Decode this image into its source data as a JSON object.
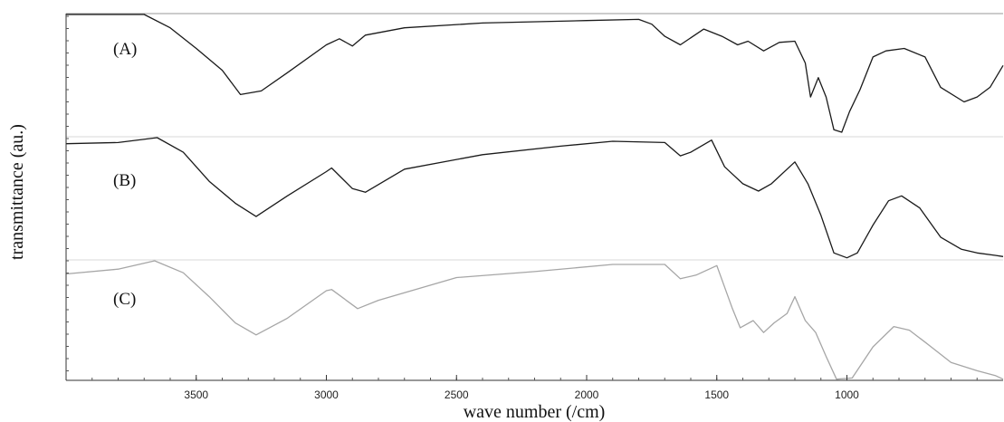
{
  "chart_data": {
    "type": "line",
    "xlabel": "wave number (/cm)",
    "ylabel": "transmittance (au.)",
    "xlim": [
      4000,
      400
    ],
    "x_ticks": [
      3500,
      3000,
      2500,
      2000,
      1500,
      1000
    ],
    "x_tick_labels": [
      "3500",
      "3000",
      "2500",
      "2000",
      "1500",
      "1000"
    ],
    "y_unit": "normalized transmittance (0 = panel bottom, 1 = panel top)",
    "grid": false,
    "legend": "none",
    "series": [
      {
        "name": "(A)",
        "color": "#1a1a1a",
        "points": [
          [
            4000,
            1.0
          ],
          [
            3700,
            1.0
          ],
          [
            3600,
            0.89
          ],
          [
            3500,
            0.72
          ],
          [
            3400,
            0.54
          ],
          [
            3330,
            0.34
          ],
          [
            3250,
            0.37
          ],
          [
            3150,
            0.52
          ],
          [
            3000,
            0.75
          ],
          [
            2950,
            0.8
          ],
          [
            2900,
            0.74
          ],
          [
            2850,
            0.83
          ],
          [
            2700,
            0.89
          ],
          [
            2400,
            0.93
          ],
          [
            2000,
            0.95
          ],
          [
            1800,
            0.96
          ],
          [
            1750,
            0.92
          ],
          [
            1700,
            0.82
          ],
          [
            1640,
            0.75
          ],
          [
            1550,
            0.88
          ],
          [
            1480,
            0.82
          ],
          [
            1420,
            0.75
          ],
          [
            1380,
            0.78
          ],
          [
            1320,
            0.7
          ],
          [
            1260,
            0.77
          ],
          [
            1200,
            0.78
          ],
          [
            1160,
            0.6
          ],
          [
            1140,
            0.32
          ],
          [
            1110,
            0.48
          ],
          [
            1080,
            0.32
          ],
          [
            1050,
            0.05
          ],
          [
            1020,
            0.03
          ],
          [
            990,
            0.2
          ],
          [
            950,
            0.38
          ],
          [
            900,
            0.65
          ],
          [
            850,
            0.7
          ],
          [
            780,
            0.72
          ],
          [
            700,
            0.65
          ],
          [
            640,
            0.4
          ],
          [
            550,
            0.28
          ],
          [
            500,
            0.32
          ],
          [
            450,
            0.4
          ],
          [
            400,
            0.58
          ]
        ]
      },
      {
        "name": "(B)",
        "color": "#1a1a1a",
        "points": [
          [
            4000,
            0.95
          ],
          [
            3800,
            0.96
          ],
          [
            3650,
            1.0
          ],
          [
            3550,
            0.88
          ],
          [
            3450,
            0.64
          ],
          [
            3350,
            0.46
          ],
          [
            3270,
            0.35
          ],
          [
            3150,
            0.52
          ],
          [
            3000,
            0.72
          ],
          [
            2980,
            0.75
          ],
          [
            2900,
            0.58
          ],
          [
            2850,
            0.55
          ],
          [
            2700,
            0.74
          ],
          [
            2400,
            0.86
          ],
          [
            2100,
            0.93
          ],
          [
            1900,
            0.97
          ],
          [
            1700,
            0.96
          ],
          [
            1640,
            0.85
          ],
          [
            1600,
            0.88
          ],
          [
            1520,
            0.98
          ],
          [
            1470,
            0.76
          ],
          [
            1440,
            0.7
          ],
          [
            1400,
            0.62
          ],
          [
            1340,
            0.56
          ],
          [
            1290,
            0.62
          ],
          [
            1200,
            0.8
          ],
          [
            1150,
            0.62
          ],
          [
            1100,
            0.36
          ],
          [
            1050,
            0.05
          ],
          [
            1000,
            0.01
          ],
          [
            960,
            0.05
          ],
          [
            900,
            0.28
          ],
          [
            840,
            0.48
          ],
          [
            790,
            0.52
          ],
          [
            720,
            0.42
          ],
          [
            640,
            0.18
          ],
          [
            560,
            0.08
          ],
          [
            500,
            0.05
          ],
          [
            430,
            0.03
          ],
          [
            400,
            0.02
          ]
        ]
      },
      {
        "name": "(C)",
        "color": "#a6a6a6",
        "points": [
          [
            4000,
            0.89
          ],
          [
            3800,
            0.93
          ],
          [
            3660,
            1.0
          ],
          [
            3550,
            0.9
          ],
          [
            3450,
            0.7
          ],
          [
            3350,
            0.48
          ],
          [
            3270,
            0.38
          ],
          [
            3150,
            0.52
          ],
          [
            3000,
            0.75
          ],
          [
            2980,
            0.76
          ],
          [
            2880,
            0.6
          ],
          [
            2800,
            0.67
          ],
          [
            2500,
            0.86
          ],
          [
            2200,
            0.91
          ],
          [
            1900,
            0.97
          ],
          [
            1700,
            0.97
          ],
          [
            1640,
            0.85
          ],
          [
            1580,
            0.88
          ],
          [
            1500,
            0.96
          ],
          [
            1440,
            0.6
          ],
          [
            1410,
            0.44
          ],
          [
            1360,
            0.5
          ],
          [
            1320,
            0.4
          ],
          [
            1280,
            0.48
          ],
          [
            1230,
            0.56
          ],
          [
            1200,
            0.7
          ],
          [
            1160,
            0.5
          ],
          [
            1120,
            0.4
          ],
          [
            1080,
            0.2
          ],
          [
            1040,
            0.01
          ],
          [
            980,
            0.02
          ],
          [
            900,
            0.28
          ],
          [
            820,
            0.45
          ],
          [
            760,
            0.42
          ],
          [
            700,
            0.32
          ],
          [
            600,
            0.15
          ],
          [
            500,
            0.08
          ],
          [
            430,
            0.04
          ],
          [
            400,
            0.01
          ]
        ]
      }
    ]
  }
}
